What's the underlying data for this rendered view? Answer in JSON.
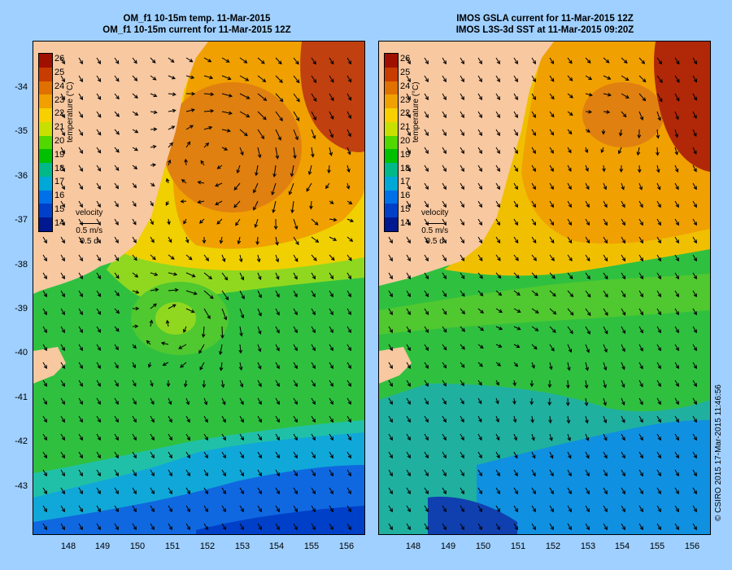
{
  "panels": [
    {
      "title_line1": "OM_f1 10-15m temp. 11-Mar-2015",
      "title_line2": "OM_f1 10-15m current for 11-Mar-2015 12Z"
    },
    {
      "title_line1": "IMOS GSLA current for 11-Mar-2015 12Z",
      "title_line2": "IMOS L3S-3d SST at 11-Mar-2015 09:20Z"
    }
  ],
  "colorbar": {
    "title": "temperature (°C)",
    "ticks": [
      "26",
      "25",
      "24",
      "23",
      "22",
      "21",
      "20",
      "19",
      "18",
      "17",
      "16",
      "15",
      "14"
    ],
    "colors": [
      "#a01000",
      "#c83c00",
      "#e07000",
      "#f0a000",
      "#f8d000",
      "#c8e000",
      "#50d800",
      "#00c000",
      "#00b888",
      "#00a8d8",
      "#0070e8",
      "#0040c8",
      "#001890"
    ]
  },
  "velocity_key": {
    "label": "velocity",
    "speed": "0.5 m/s",
    "duration": "0.5 d"
  },
  "y_axis_ticks": [
    "-34",
    "-35",
    "-36",
    "-37",
    "-38",
    "-39",
    "-40",
    "-41",
    "-42",
    "-43"
  ],
  "x_axis_ticks": [
    "148",
    "149",
    "150",
    "151",
    "152",
    "153",
    "154",
    "155",
    "156"
  ],
  "credit": "© CSIRO 2015 17-Mar-2015 11:46:56",
  "colors": {
    "land": "#f8c8a0",
    "background": "#9fd0ff"
  }
}
